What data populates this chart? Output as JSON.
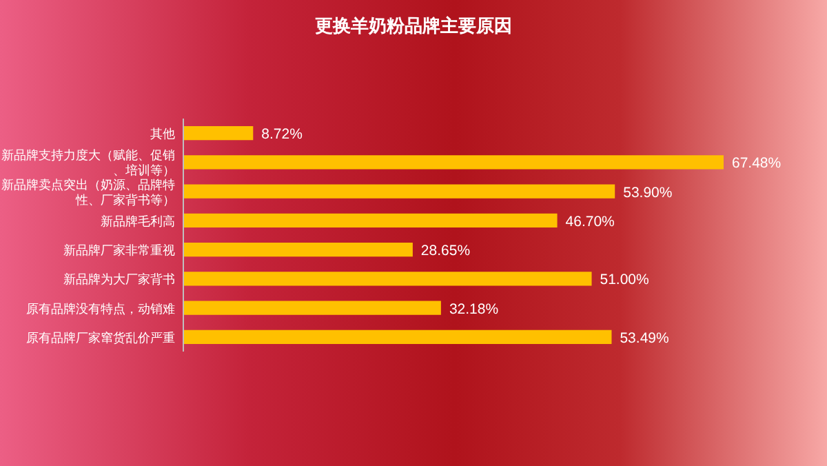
{
  "chart_data": {
    "type": "bar",
    "orientation": "horizontal",
    "title": "更换羊奶粉品牌主要原因",
    "categories": [
      "其他",
      "新品牌支持力度大（赋能、促销、培训等）",
      "新品牌卖点突出（奶源、品牌特性、厂家背书等）",
      "新品牌毛利高",
      "新品牌厂家非常重视",
      "新品牌为大厂家背书",
      "原有品牌没有特点，动销难",
      "原有品牌厂家窜货乱价严重"
    ],
    "values": [
      8.72,
      67.48,
      53.9,
      46.7,
      28.65,
      51.0,
      32.18,
      53.49
    ],
    "value_labels": [
      "8.72%",
      "67.48%",
      "53.90%",
      "46.70%",
      "28.65%",
      "51.00%",
      "32.18%",
      "53.49%"
    ],
    "color": "#ffc000"
  }
}
